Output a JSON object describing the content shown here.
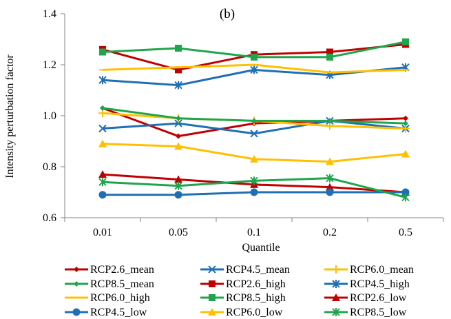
{
  "chart_data": {
    "type": "line",
    "panel_label": "(b)",
    "title": "",
    "xlabel": "Quantile",
    "ylabel": "Intensity perturbation factor",
    "categories": [
      "0.01",
      "0.05",
      "0.1",
      "0.2",
      "0.5"
    ],
    "ylim": [
      0.6,
      1.4
    ],
    "yticks": [
      "0.6",
      "0.8",
      "1.0",
      "1.2",
      "1.4"
    ],
    "grid": false,
    "legend_position": "bottom",
    "series": [
      {
        "name": "RCP2.6_mean",
        "color": "#C00000",
        "marker": "diamond",
        "values": [
          1.03,
          0.92,
          0.97,
          0.98,
          0.99
        ]
      },
      {
        "name": "RCP4.5_mean",
        "color": "#1F6FB4",
        "marker": "x",
        "values": [
          0.95,
          0.97,
          0.93,
          0.98,
          0.95
        ]
      },
      {
        "name": "RCP6.0_mean",
        "color": "#FFC000",
        "marker": "plus",
        "values": [
          1.01,
          0.99,
          0.98,
          0.96,
          0.95
        ]
      },
      {
        "name": "RCP8.5_mean",
        "color": "#1FA54B",
        "marker": "diamond",
        "values": [
          1.03,
          0.99,
          0.98,
          0.98,
          0.97
        ]
      },
      {
        "name": "RCP2.6_high",
        "color": "#C00000",
        "marker": "square",
        "values": [
          1.26,
          1.18,
          1.24,
          1.25,
          1.28
        ]
      },
      {
        "name": "RCP4.5_high",
        "color": "#1F6FB4",
        "marker": "star",
        "values": [
          1.14,
          1.12,
          1.18,
          1.16,
          1.19
        ]
      },
      {
        "name": "RCP6.0_high",
        "color": "#FFC000",
        "marker": "dash",
        "values": [
          1.18,
          1.19,
          1.2,
          1.17,
          1.18
        ]
      },
      {
        "name": "RCP8.5_high",
        "color": "#1FA54B",
        "marker": "square",
        "values": [
          1.25,
          1.265,
          1.23,
          1.23,
          1.29
        ]
      },
      {
        "name": "RCP2.6_low",
        "color": "#C00000",
        "marker": "triangle",
        "values": [
          0.77,
          0.75,
          0.73,
          0.72,
          0.7
        ]
      },
      {
        "name": "RCP4.5_low",
        "color": "#1F6FB4",
        "marker": "circle",
        "values": [
          0.69,
          0.69,
          0.7,
          0.7,
          0.7
        ]
      },
      {
        "name": "RCP6.0_low",
        "color": "#FFC000",
        "marker": "triangle",
        "values": [
          0.89,
          0.88,
          0.83,
          0.82,
          0.85
        ]
      },
      {
        "name": "RCP8.5_low",
        "color": "#1FA54B",
        "marker": "star",
        "values": [
          0.74,
          0.725,
          0.745,
          0.755,
          0.68
        ]
      }
    ]
  }
}
